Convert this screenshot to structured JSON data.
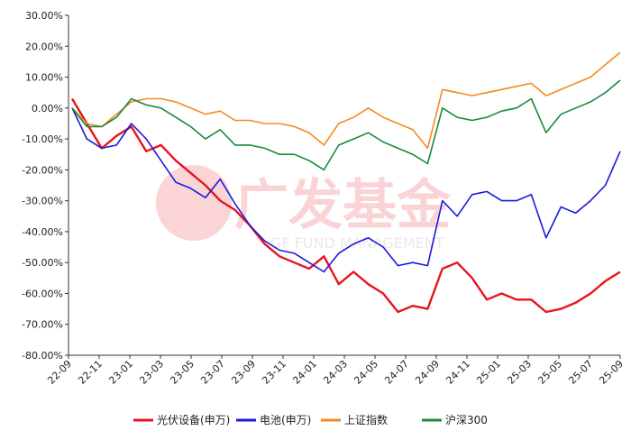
{
  "watermark": {
    "cn": "广发基金",
    "en": "GF FUND MANAGEMENT"
  },
  "chart_data": {
    "type": "line",
    "title": "",
    "xlabel": "",
    "ylabel": "",
    "ylim": [
      -80,
      30
    ],
    "y_ticks": [
      "30.00%",
      "20.00%",
      "10.00%",
      "0.00%",
      "-10.00%",
      "-20.00%",
      "-30.00%",
      "-40.00%",
      "-50.00%",
      "-60.00%",
      "-70.00%",
      "-80.00%"
    ],
    "x_ticks": [
      "22-09",
      "22-11",
      "23-01",
      "23-03",
      "23-05",
      "23-07",
      "23-09",
      "23-11",
      "24-01",
      "24-03",
      "24-05",
      "24-07",
      "24-09",
      "24-11",
      "25-01",
      "25-03",
      "25-05",
      "25-07",
      "25-09"
    ],
    "grid": false,
    "legend_position": "bottom",
    "series": [
      {
        "name": "光伏设备(申万)",
        "color": "#e8141b",
        "values": [
          3,
          -5,
          -13,
          -9,
          -6,
          -14,
          -12,
          -17,
          -21,
          -25,
          -30,
          -33,
          -38,
          -44,
          -48,
          -50,
          -52,
          -48,
          -57,
          -53,
          -57,
          -60,
          -66,
          -64,
          -65,
          -52,
          -50,
          -55,
          -62,
          -60,
          -62,
          -62,
          -66,
          -65,
          -63,
          -60,
          -56,
          -53
        ]
      },
      {
        "name": "电池(申万)",
        "color": "#1a1adb",
        "values": [
          0,
          -10,
          -13,
          -12,
          -5,
          -10,
          -17,
          -24,
          -26,
          -29,
          -23,
          -31,
          -38,
          -43,
          -46,
          -47,
          -50,
          -53,
          -47,
          -44,
          -42,
          -45,
          -51,
          -50,
          -51,
          -30,
          -35,
          -28,
          -27,
          -30,
          -30,
          -28,
          -42,
          -32,
          -34,
          -30,
          -25,
          -14
        ]
      },
      {
        "name": "上证指数",
        "color": "#f58a1f",
        "values": [
          0,
          -5,
          -6,
          -2,
          2,
          3,
          3,
          2,
          0,
          -2,
          -1,
          -4,
          -4,
          -5,
          -5,
          -6,
          -8,
          -12,
          -5,
          -3,
          0,
          -3,
          -5,
          -7,
          -13,
          6,
          5,
          4,
          5,
          6,
          7,
          8,
          4,
          6,
          8,
          10,
          14,
          18
        ]
      },
      {
        "name": "沪深300",
        "color": "#1a8a3c",
        "values": [
          0,
          -6,
          -6,
          -3,
          3,
          1,
          0,
          -3,
          -6,
          -10,
          -7,
          -12,
          -12,
          -13,
          -15,
          -15,
          -17,
          -20,
          -12,
          -10,
          -8,
          -11,
          -13,
          -15,
          -18,
          0,
          -3,
          -4,
          -3,
          -1,
          0,
          3,
          -8,
          -2,
          0,
          2,
          5,
          9
        ]
      }
    ]
  }
}
